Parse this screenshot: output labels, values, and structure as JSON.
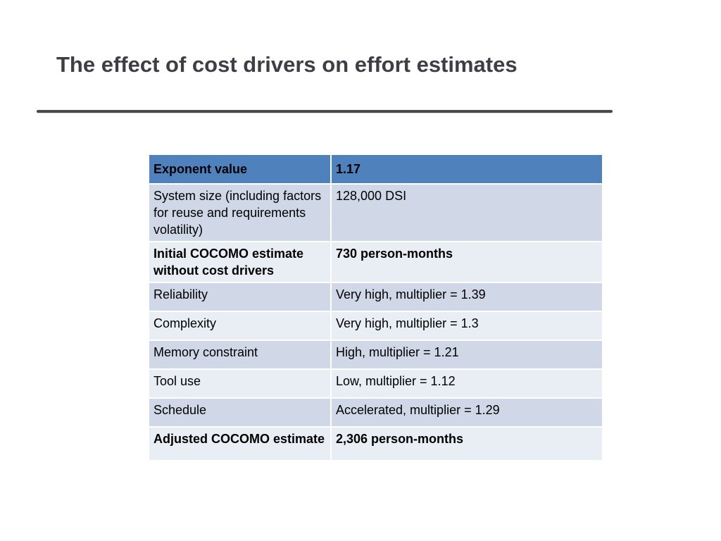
{
  "slide": {
    "title": "The effect of cost drivers on effort estimates"
  },
  "table": {
    "header": [
      "Exponent value",
      "1.17"
    ],
    "rows": [
      {
        "label": "System size (including factors for reuse and requirements volatility)",
        "value": "128,000 DSI"
      },
      {
        "label": "Initial COCOMO estimate without cost drivers",
        "value": "730 person-months"
      },
      {
        "label": "Reliability",
        "value": "Very high, multiplier = 1.39"
      },
      {
        "label": "Complexity",
        "value": "Very high, multiplier = 1.3"
      },
      {
        "label": "Memory constraint",
        "value": "High, multiplier = 1.21"
      },
      {
        "label": "Tool use",
        "value": "Low, multiplier = 1.12"
      },
      {
        "label": "Schedule",
        "value": "Accelerated, multiplier = 1.29"
      },
      {
        "label": "Adjusted COCOMO estimate",
        "value": "2,306 person-months"
      }
    ]
  },
  "colors": {
    "header_background": "#4f81bd",
    "row_dark": "#d0d8e8",
    "row_light": "#e9edf4",
    "title_text": "#3e3e46"
  }
}
